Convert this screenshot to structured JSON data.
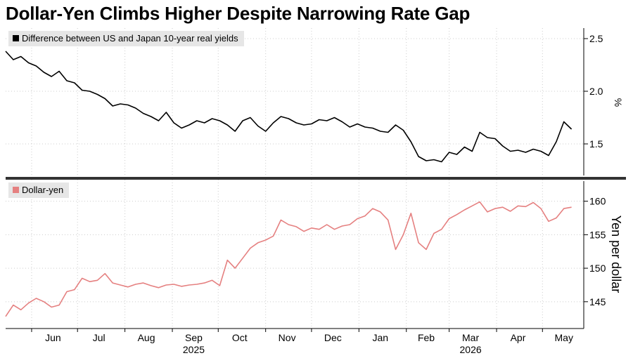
{
  "title": "Dollar-Yen Climbs Higher Despite Narrowing Rate Gap",
  "colors": {
    "top_series": "#000000",
    "bottom_series": "#e58080",
    "divider": "#333333",
    "grid": "#cccccc"
  },
  "chart_data": [
    {
      "type": "line",
      "panel": "top",
      "ylabel": "%",
      "ylim": [
        1.2,
        2.6
      ],
      "yticks": [
        "1.5",
        "2.0",
        "2.5"
      ],
      "grid": true,
      "legend": "top-left",
      "series": [
        {
          "name": "Difference between US and Japan 10-year real yields",
          "x": [
            "2025-05-15",
            "2025-05-20",
            "2025-05-25",
            "2025-05-30",
            "2025-06-04",
            "2025-06-09",
            "2025-06-14",
            "2025-06-19",
            "2025-06-24",
            "2025-06-29",
            "2025-07-04",
            "2025-07-09",
            "2025-07-14",
            "2025-07-19",
            "2025-07-24",
            "2025-07-29",
            "2025-08-03",
            "2025-08-08",
            "2025-08-13",
            "2025-08-18",
            "2025-08-23",
            "2025-08-28",
            "2025-09-02",
            "2025-09-07",
            "2025-09-12",
            "2025-09-17",
            "2025-09-22",
            "2025-09-27",
            "2025-10-02",
            "2025-10-07",
            "2025-10-12",
            "2025-10-17",
            "2025-10-22",
            "2025-10-27",
            "2025-11-01",
            "2025-11-06",
            "2025-11-11",
            "2025-11-16",
            "2025-11-21",
            "2025-11-26",
            "2025-12-01",
            "2025-12-06",
            "2025-12-11",
            "2025-12-16",
            "2025-12-21",
            "2025-12-26",
            "2025-12-31",
            "2026-01-05",
            "2026-01-10",
            "2026-01-15",
            "2026-01-20",
            "2026-01-25",
            "2026-01-30",
            "2026-02-04",
            "2026-02-09",
            "2026-02-14",
            "2026-02-19",
            "2026-02-24",
            "2026-03-01",
            "2026-03-06",
            "2026-03-11",
            "2026-03-16",
            "2026-03-21",
            "2026-03-26",
            "2026-03-31",
            "2026-04-05",
            "2026-04-10",
            "2026-04-15",
            "2026-04-20",
            "2026-04-25",
            "2026-04-30",
            "2026-05-05",
            "2026-05-10",
            "2026-05-15",
            "2026-05-20"
          ],
          "y": [
            2.38,
            2.3,
            2.33,
            2.27,
            2.24,
            2.18,
            2.14,
            2.19,
            2.1,
            2.08,
            2.01,
            2.0,
            1.97,
            1.93,
            1.86,
            1.88,
            1.87,
            1.84,
            1.79,
            1.76,
            1.72,
            1.8,
            1.7,
            1.65,
            1.68,
            1.72,
            1.7,
            1.74,
            1.72,
            1.68,
            1.62,
            1.72,
            1.75,
            1.67,
            1.62,
            1.7,
            1.76,
            1.74,
            1.7,
            1.68,
            1.69,
            1.73,
            1.72,
            1.75,
            1.71,
            1.66,
            1.69,
            1.66,
            1.65,
            1.62,
            1.61,
            1.68,
            1.63,
            1.52,
            1.38,
            1.34,
            1.35,
            1.33,
            1.42,
            1.4,
            1.47,
            1.43,
            1.61,
            1.56,
            1.55,
            1.48,
            1.43,
            1.44,
            1.42,
            1.45,
            1.43,
            1.39,
            1.52,
            1.71,
            1.64
          ]
        }
      ]
    },
    {
      "type": "line",
      "panel": "bottom",
      "ylabel": "Yen per dollar",
      "ylim": [
        141,
        163
      ],
      "yticks": [
        "145",
        "150",
        "155",
        "160"
      ],
      "grid": true,
      "legend": "top-left",
      "xticks": [
        "Jun",
        "Jul",
        "Aug",
        "Sep",
        "Oct",
        "Nov",
        "Dec",
        "Jan",
        "Feb",
        "Mar",
        "Apr",
        "May"
      ],
      "xyears": [
        "2025",
        "2026"
      ],
      "series": [
        {
          "name": "Dollar-yen",
          "x": [
            "2025-05-15",
            "2025-05-20",
            "2025-05-25",
            "2025-05-30",
            "2025-06-04",
            "2025-06-09",
            "2025-06-14",
            "2025-06-19",
            "2025-06-24",
            "2025-06-29",
            "2025-07-04",
            "2025-07-09",
            "2025-07-14",
            "2025-07-19",
            "2025-07-24",
            "2025-07-29",
            "2025-08-03",
            "2025-08-08",
            "2025-08-13",
            "2025-08-18",
            "2025-08-23",
            "2025-08-28",
            "2025-09-02",
            "2025-09-07",
            "2025-09-12",
            "2025-09-17",
            "2025-09-22",
            "2025-09-27",
            "2025-10-02",
            "2025-10-07",
            "2025-10-12",
            "2025-10-17",
            "2025-10-22",
            "2025-10-27",
            "2025-11-01",
            "2025-11-06",
            "2025-11-11",
            "2025-11-16",
            "2025-11-21",
            "2025-11-26",
            "2025-12-01",
            "2025-12-06",
            "2025-12-11",
            "2025-12-16",
            "2025-12-21",
            "2025-12-26",
            "2025-12-31",
            "2026-01-05",
            "2026-01-10",
            "2026-01-15",
            "2026-01-20",
            "2026-01-25",
            "2026-01-30",
            "2026-02-04",
            "2026-02-09",
            "2026-02-14",
            "2026-02-19",
            "2026-02-24",
            "2026-03-01",
            "2026-03-06",
            "2026-03-11",
            "2026-03-16",
            "2026-03-21",
            "2026-03-26",
            "2026-03-31",
            "2026-04-05",
            "2026-04-10",
            "2026-04-15",
            "2026-04-20",
            "2026-04-25",
            "2026-04-30",
            "2026-05-05",
            "2026-05-10",
            "2026-05-15",
            "2026-05-20"
          ],
          "y": [
            142.8,
            144.5,
            143.8,
            144.8,
            145.5,
            145.0,
            144.2,
            144.5,
            146.5,
            146.8,
            148.5,
            148.0,
            148.2,
            149.2,
            147.8,
            147.5,
            147.2,
            147.6,
            147.8,
            147.4,
            147.1,
            147.5,
            147.6,
            147.3,
            147.5,
            147.6,
            147.8,
            148.2,
            147.4,
            151.2,
            150.0,
            151.5,
            153.0,
            153.8,
            154.2,
            154.8,
            157.2,
            156.5,
            156.2,
            155.5,
            156.0,
            155.8,
            156.5,
            155.8,
            156.3,
            156.5,
            157.4,
            157.8,
            158.9,
            158.4,
            157.2,
            152.8,
            155.0,
            158.2,
            153.8,
            152.8,
            155.2,
            155.8,
            157.4,
            158.0,
            158.7,
            159.3,
            159.9,
            158.4,
            158.9,
            159.1,
            158.5,
            159.3,
            159.2,
            159.8,
            158.9,
            157.0,
            157.5,
            158.9,
            159.1
          ]
        }
      ]
    }
  ]
}
